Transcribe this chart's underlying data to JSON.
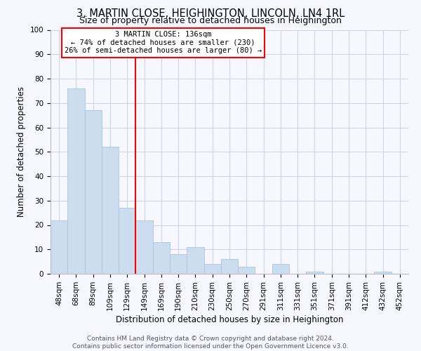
{
  "title": "3, MARTIN CLOSE, HEIGHINGTON, LINCOLN, LN4 1RL",
  "subtitle": "Size of property relative to detached houses in Heighington",
  "xlabel": "Distribution of detached houses by size in Heighington",
  "ylabel": "Number of detached properties",
  "bar_color": "#ccddf0",
  "bar_edge_color": "#aac4e0",
  "categories": [
    "48sqm",
    "68sqm",
    "89sqm",
    "109sqm",
    "129sqm",
    "149sqm",
    "169sqm",
    "190sqm",
    "210sqm",
    "230sqm",
    "250sqm",
    "270sqm",
    "291sqm",
    "311sqm",
    "331sqm",
    "351sqm",
    "371sqm",
    "391sqm",
    "412sqm",
    "432sqm",
    "452sqm"
  ],
  "values": [
    22,
    76,
    67,
    52,
    27,
    22,
    13,
    8,
    11,
    4,
    6,
    3,
    0,
    4,
    0,
    1,
    0,
    0,
    0,
    1,
    0
  ],
  "ylim": [
    0,
    100
  ],
  "yticks": [
    0,
    10,
    20,
    30,
    40,
    50,
    60,
    70,
    80,
    90,
    100
  ],
  "property_label": "3 MARTIN CLOSE: 136sqm",
  "smaller_pct": "74%",
  "smaller_n": "230",
  "larger_pct": "26%",
  "larger_n": "80",
  "vline_index": 4.5,
  "footer_line1": "Contains HM Land Registry data © Crown copyright and database right 2024.",
  "footer_line2": "Contains public sector information licensed under the Open Government Licence v3.0.",
  "background_color": "#f7f7ff",
  "grid_color": "#cdd5e8",
  "title_fontsize": 10.5,
  "subtitle_fontsize": 9,
  "tick_fontsize": 7.5,
  "label_fontsize": 8.5,
  "footer_fontsize": 6.5
}
